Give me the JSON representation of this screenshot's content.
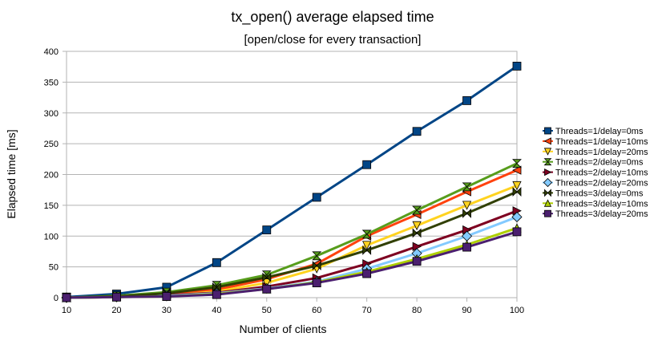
{
  "chart_data": {
    "type": "line",
    "title": "tx_open() average elapsed time",
    "subtitle": "[open/close for every transaction]",
    "xlabel": "Number of clients",
    "ylabel": "Elapsed time [ms]",
    "x": [
      10,
      20,
      30,
      40,
      50,
      60,
      70,
      80,
      90,
      100
    ],
    "xlim": [
      10,
      100
    ],
    "ylim": [
      0,
      400
    ],
    "yticks": [
      0,
      50,
      100,
      150,
      200,
      250,
      300,
      350,
      400
    ],
    "grid": "horizontal major gridlines on",
    "legend_position": "right",
    "series": [
      {
        "name": "Threads=1/delay=0ms",
        "color": "#004586",
        "marker": "square",
        "values": [
          1,
          6,
          17,
          57,
          110,
          163,
          216,
          270,
          320,
          376
        ]
      },
      {
        "name": "Threads=1/delay=10ms",
        "color": "#ff420e",
        "marker": "triangle-left",
        "values": [
          0,
          2,
          5,
          13,
          30,
          55,
          100,
          135,
          172,
          207
        ]
      },
      {
        "name": "Threads=1/delay=20ms",
        "color": "#ffd320",
        "marker": "triangle-down",
        "values": [
          0,
          1,
          3,
          10,
          24,
          47,
          85,
          117,
          150,
          182
        ]
      },
      {
        "name": "Threads=2/delay=0ms",
        "color": "#579d1c",
        "marker": "hourglass",
        "values": [
          0,
          3,
          9,
          20,
          37,
          68,
          103,
          142,
          180,
          218
        ]
      },
      {
        "name": "Threads=2/delay=10ms",
        "color": "#7e0021",
        "marker": "triangle-right",
        "values": [
          0,
          1,
          4,
          8,
          18,
          32,
          55,
          83,
          110,
          141
        ]
      },
      {
        "name": "Threads=2/delay=20ms",
        "color": "#83caff",
        "marker": "diamond",
        "values": [
          0,
          1,
          3,
          7,
          15,
          26,
          47,
          72,
          100,
          131
        ]
      },
      {
        "name": "Threads=3/delay=0ms",
        "color": "#314004",
        "marker": "bowtie",
        "values": [
          0,
          2,
          7,
          17,
          33,
          52,
          77,
          105,
          137,
          172
        ]
      },
      {
        "name": "Threads=3/delay=10ms",
        "color": "#aecf00",
        "marker": "triangle-up",
        "values": [
          0,
          1,
          2,
          6,
          14,
          25,
          42,
          63,
          86,
          113
        ]
      },
      {
        "name": "Threads=3/delay=20ms",
        "color": "#4b1f6f",
        "marker": "square",
        "values": [
          0,
          1,
          2,
          5,
          14,
          24,
          39,
          59,
          82,
          107
        ]
      }
    ]
  }
}
